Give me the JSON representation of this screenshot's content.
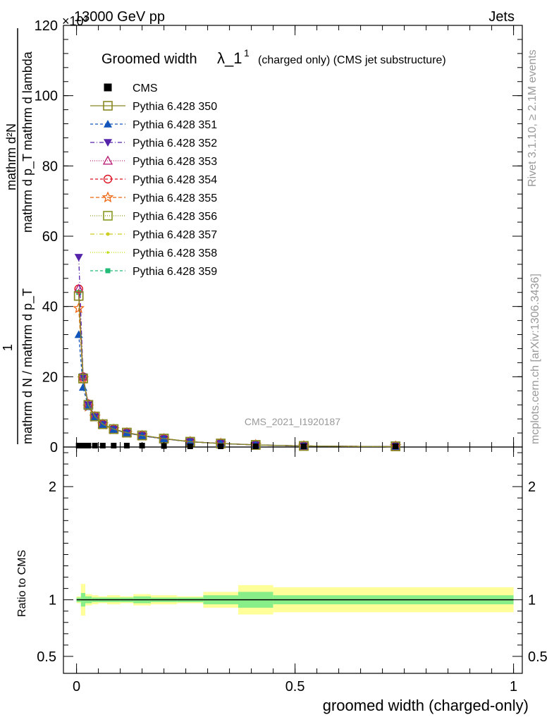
{
  "header": {
    "left": "13000 GeV pp",
    "right": "Jets",
    "exponent": "×10³",
    "watermark": "CMS_2021_I1920187"
  },
  "side_labels": {
    "rivet": "Rivet 3.1.10, ≥ 2.1M events",
    "mcplots": "mcplots.cern.ch [arXiv:1306.3436]"
  },
  "title": {
    "main": "Groomed width",
    "lambda": "λ_1",
    "superscript": "1",
    "suffix": "(charged only) (CMS jet substructure)"
  },
  "axes": {
    "ylabel_num": "mathrm d²N",
    "ylabel_den": "mathrm d p_T mathrm d lambda",
    "ylabel_line2_num": "1",
    "ylabel_line2_den": "mathrm d N / mathrm d p_T",
    "ylabel_top": "mathrm d²N",
    "ylabel_top_den": "mathrm d p_T mathrm d lambda",
    "ratio_ylabel": "Ratio to CMS",
    "xlabel": "groomed width (charged-only)"
  },
  "colors": {
    "cms": "#000000",
    "p350": "#888822",
    "p351": "#1155bb",
    "p352": "#5522aa",
    "p353": "#bb2277",
    "p354": "#dd1122",
    "p355": "#ee6611",
    "p356": "#889922",
    "p357": "#cccc22",
    "p358": "#bbdd11",
    "p359": "#22bb77",
    "band_inner": "#88ee88",
    "band_outer": "#ffff99"
  },
  "chart_data": {
    "type": "line",
    "title": "Groomed width λ_1¹ (charged only) (CMS jet substructure)",
    "xlabel": "groomed width (charged-only)",
    "xlim": [
      -0.03,
      1.02
    ],
    "main_ylim": [
      0,
      120
    ],
    "main_yscale_label": "×10³",
    "main_yticks": [
      0,
      20,
      40,
      60,
      80,
      100,
      120
    ],
    "ratio_ylim": [
      0.35,
      2.35
    ],
    "ratio_yticks": [
      0.5,
      1,
      2
    ],
    "xticks": [
      0,
      0.5,
      1
    ],
    "legend_position": "top-left",
    "x": [
      0.005,
      0.015,
      0.027,
      0.042,
      0.06,
      0.085,
      0.115,
      0.15,
      0.2,
      0.26,
      0.33,
      0.41,
      0.52,
      0.73
    ],
    "series": [
      {
        "name": "CMS",
        "marker": "square-filled",
        "values": [
          0.4,
          0.4,
          0.4,
          0.4,
          0.4,
          0.4,
          0.4,
          0.4,
          0.3,
          0.2,
          0.1,
          0.1,
          0.05,
          0.02
        ]
      },
      {
        "name": "Pythia 6.428 350",
        "marker": "square-open",
        "dash": "solid",
        "values": [
          43,
          19.5,
          12,
          8.7,
          6.5,
          5.1,
          4.1,
          3.3,
          2.4,
          1.5,
          1.0,
          0.6,
          0.3,
          0.1
        ]
      },
      {
        "name": "Pythia 6.428 351",
        "marker": "triangle-up-filled",
        "dash": "4,3",
        "values": [
          32,
          17,
          11.5,
          8.5,
          6.3,
          5.0,
          4.0,
          3.2,
          2.3,
          1.5,
          1.0,
          0.6,
          0.3,
          0.1
        ]
      },
      {
        "name": "Pythia 6.428 352",
        "marker": "triangle-down-filled",
        "dash": "6,3,1,3",
        "values": [
          54,
          20,
          12,
          8.6,
          6.4,
          5.0,
          4.0,
          3.2,
          2.3,
          1.5,
          1.0,
          0.6,
          0.3,
          0.1
        ]
      },
      {
        "name": "Pythia 6.428 353",
        "marker": "triangle-up-open",
        "dash": "1,2",
        "values": [
          45,
          20,
          12.2,
          8.7,
          6.5,
          5.1,
          4.1,
          3.3,
          2.4,
          1.5,
          1.0,
          0.6,
          0.3,
          0.1
        ]
      },
      {
        "name": "Pythia 6.428 354",
        "marker": "circle-open",
        "dash": "4,3",
        "values": [
          45,
          20,
          12.3,
          8.8,
          6.5,
          5.1,
          4.1,
          3.3,
          2.4,
          1.5,
          1.0,
          0.6,
          0.3,
          0.1
        ]
      },
      {
        "name": "Pythia 6.428 355",
        "marker": "star-open",
        "dash": "5,3",
        "values": [
          39.5,
          19.5,
          11.5,
          8.6,
          6.4,
          5.0,
          4.0,
          3.2,
          2.3,
          1.5,
          1.0,
          0.6,
          0.3,
          0.1
        ]
      },
      {
        "name": "Pythia 6.428 356",
        "marker": "square-open",
        "dash": "1,2",
        "values": [
          43,
          19.5,
          12,
          8.7,
          6.5,
          5.1,
          4.1,
          3.3,
          2.4,
          1.5,
          1.0,
          0.6,
          0.3,
          0.1
        ]
      },
      {
        "name": "Pythia 6.428 357",
        "marker": "dot",
        "dash": "6,3,1,3",
        "values": [
          44,
          19.8,
          12.1,
          8.7,
          6.5,
          5.1,
          4.1,
          3.3,
          2.4,
          1.5,
          1.0,
          0.6,
          0.3,
          0.1
        ]
      },
      {
        "name": "Pythia 6.428 358",
        "marker": "dot-small",
        "dash": "1,2",
        "values": [
          44,
          19.8,
          12.1,
          8.7,
          6.5,
          5.1,
          4.1,
          3.3,
          2.4,
          1.5,
          1.0,
          0.6,
          0.3,
          0.1
        ]
      },
      {
        "name": "Pythia 6.428 359",
        "marker": "square-small-filled",
        "dash": "4,3",
        "values": [
          44,
          19.8,
          12.2,
          8.7,
          6.5,
          5.1,
          4.1,
          3.3,
          2.4,
          1.5,
          1.0,
          0.6,
          0.3,
          0.1
        ]
      }
    ],
    "ratio_bands": [
      {
        "x0": 0.0,
        "x1": 0.01,
        "inner": 0.02,
        "outer": 0.03
      },
      {
        "x0": 0.01,
        "x1": 0.02,
        "inner": 0.06,
        "outer": 0.14
      },
      {
        "x0": 0.02,
        "x1": 0.035,
        "inner": 0.03,
        "outer": 0.05
      },
      {
        "x0": 0.035,
        "x1": 0.05,
        "inner": 0.02,
        "outer": 0.04
      },
      {
        "x0": 0.05,
        "x1": 0.07,
        "inner": 0.02,
        "outer": 0.03
      },
      {
        "x0": 0.07,
        "x1": 0.1,
        "inner": 0.02,
        "outer": 0.04
      },
      {
        "x0": 0.1,
        "x1": 0.13,
        "inner": 0.02,
        "outer": 0.03
      },
      {
        "x0": 0.13,
        "x1": 0.17,
        "inner": 0.03,
        "outer": 0.05
      },
      {
        "x0": 0.17,
        "x1": 0.23,
        "inner": 0.02,
        "outer": 0.04
      },
      {
        "x0": 0.23,
        "x1": 0.29,
        "inner": 0.02,
        "outer": 0.03
      },
      {
        "x0": 0.29,
        "x1": 0.37,
        "inner": 0.04,
        "outer": 0.07
      },
      {
        "x0": 0.37,
        "x1": 0.45,
        "inner": 0.07,
        "outer": 0.13
      },
      {
        "x0": 0.45,
        "x1": 1.0,
        "inner": 0.04,
        "outer": 0.11
      }
    ]
  }
}
